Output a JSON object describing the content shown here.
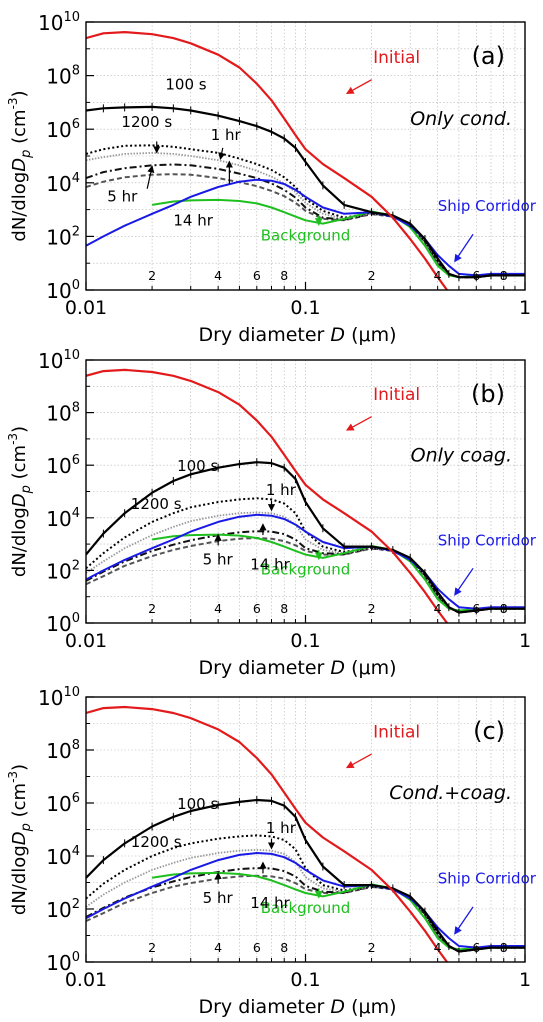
{
  "figure": {
    "panels": [
      {
        "label": "(a)",
        "mode_label": "Only cond."
      },
      {
        "label": "(b)",
        "mode_label": "Only coag."
      },
      {
        "label": "(c)",
        "mode_label": "Cond.+coag."
      }
    ],
    "xlabel": {
      "prefix": "Dry diameter ",
      "var": "D",
      "unit": " (μm)"
    },
    "ylabel": {
      "prefix": "dN/dlog",
      "var": "D",
      "sub": "p",
      "unit": " (cm",
      "exp": "-3",
      "close": ")"
    },
    "x_tick_major_labels": [
      "0.01",
      "0.1",
      "1"
    ],
    "x_tick_minor_labels": [
      "2",
      "4",
      "6",
      "8"
    ],
    "y_tick_labels": [
      {
        "base": "10",
        "exp": "0"
      },
      {
        "base": "10",
        "exp": "2"
      },
      {
        "base": "10",
        "exp": "4"
      },
      {
        "base": "10",
        "exp": "6"
      },
      {
        "base": "10",
        "exp": "8"
      },
      {
        "base": "10",
        "exp": "10"
      }
    ]
  },
  "colors": {
    "Initial": "#e31a1c",
    "Ship Corridor": "#1a1ae6",
    "Background": "#1fbf1f",
    "100 s": "#000000",
    "1200 s": "#000000",
    "1 hr": "#999999",
    "5 hr": "#111111",
    "14 hr": "#555555",
    "grid": "#b5b5b5"
  },
  "chart_data": [
    {
      "type": "line",
      "title": "(a) Only cond.",
      "x_scale": "log",
      "y_scale": "log",
      "xlim": [
        0.01,
        1
      ],
      "ylim": [
        1,
        10000000000.0
      ],
      "grid": true,
      "xlabel": "Dry diameter D (μm)",
      "ylabel": "dN/dlogDp (cm-3)",
      "x": [
        0.01,
        0.012,
        0.015,
        0.02,
        0.025,
        0.03,
        0.04,
        0.05,
        0.06,
        0.07,
        0.08,
        0.09,
        0.1,
        0.12,
        0.15,
        0.2,
        0.25,
        0.3,
        0.35,
        0.4,
        0.45,
        0.5,
        0.6,
        0.7,
        0.8,
        1.0
      ],
      "series": [
        {
          "name": "Initial",
          "values": [
            2500000000.0,
            3800000000.0,
            4200000000.0,
            3500000000.0,
            2500000000.0,
            1600000000.0,
            600000000.0,
            200000000.0,
            50000000.0,
            12000000.0,
            2500000.0,
            600000.0,
            180000.0,
            50000.0,
            15000.0,
            3000,
            500,
            80,
            15,
            3,
            0.8,
            null,
            null,
            null,
            null,
            null
          ]
        },
        {
          "name": "Ship Corridor",
          "values": [
            45,
            100,
            250,
            700,
            1500,
            3000,
            7000,
            11000.0,
            13000.0,
            12000.0,
            9000,
            5500,
            3000,
            1200,
            700,
            800,
            550,
            250,
            80,
            20,
            8,
            4,
            3.5,
            4,
            4,
            4
          ]
        },
        {
          "name": "Background",
          "values": [
            null,
            null,
            null,
            1500,
            2000,
            2200,
            2300,
            2100,
            1700,
            1200,
            800,
            550,
            400,
            300,
            450,
            850,
            600,
            220,
            45,
            8,
            3.5,
            3,
            3.3,
            3.5,
            3.5,
            3.5
          ]
        },
        {
          "name": "100 s",
          "values": [
            5000000.0,
            6000000.0,
            6500000.0,
            6800000.0,
            6000000.0,
            5000000.0,
            3200000.0,
            2000000.0,
            1300000.0,
            800000.0,
            450000.0,
            200000.0,
            60000.0,
            8000,
            1500,
            800,
            600,
            300,
            80,
            15,
            4,
            3,
            3,
            3.5,
            3.5,
            3.5
          ]
        },
        {
          "name": "1200 s",
          "values": [
            120000.0,
            180000.0,
            240000.0,
            250000.0,
            220000.0,
            180000.0,
            130000.0,
            80000.0,
            50000.0,
            30000.0,
            16000.0,
            7000,
            2500,
            900,
            500,
            750,
            600,
            280,
            70,
            12,
            4,
            3,
            3,
            3.5,
            3.5,
            3.5
          ]
        },
        {
          "name": "1 hr",
          "values": [
            70000.0,
            90000.0,
            120000.0,
            130000.0,
            120000.0,
            100000.0,
            70000.0,
            45000.0,
            28000.0,
            17000.0,
            9500,
            4500,
            1800,
            700,
            450,
            720,
            580,
            270,
            70,
            12,
            4,
            3,
            3,
            3.5,
            3.5,
            3.5
          ]
        },
        {
          "name": "5 hr",
          "values": [
            15000.0,
            25000.0,
            35000.0,
            45000.0,
            48000.0,
            45000.0,
            33000.0,
            22000.0,
            15000.0,
            9500,
            5500,
            2800,
            1200,
            500,
            420,
            700,
            560,
            260,
            65,
            11,
            4,
            3,
            3,
            3.5,
            3.5,
            3.5
          ]
        },
        {
          "name": "14 hr",
          "values": [
            7000,
            11000.0,
            16000.0,
            20000.0,
            21000.0,
            20000.0,
            15000.0,
            10500.0,
            7500,
            5000,
            3200,
            1800,
            900,
            450,
            400,
            680,
            550,
            250,
            60,
            10,
            3.8,
            3,
            3,
            3.5,
            3.5,
            3.5
          ]
        }
      ]
    },
    {
      "type": "line",
      "title": "(b) Only coag.",
      "x_scale": "log",
      "y_scale": "log",
      "xlim": [
        0.01,
        1
      ],
      "ylim": [
        1,
        10000000000.0
      ],
      "grid": true,
      "xlabel": "Dry diameter D (μm)",
      "ylabel": "dN/dlogDp (cm-3)",
      "x": [
        0.01,
        0.012,
        0.015,
        0.02,
        0.025,
        0.03,
        0.04,
        0.05,
        0.06,
        0.07,
        0.08,
        0.09,
        0.1,
        0.12,
        0.15,
        0.2,
        0.25,
        0.3,
        0.35,
        0.4,
        0.45,
        0.5,
        0.6,
        0.7,
        0.8,
        1.0
      ],
      "series": [
        {
          "name": "Initial",
          "values": [
            2500000000.0,
            3800000000.0,
            4200000000.0,
            3500000000.0,
            2500000000.0,
            1600000000.0,
            600000000.0,
            200000000.0,
            50000000.0,
            12000000.0,
            2500000.0,
            600000.0,
            180000.0,
            50000.0,
            15000.0,
            3000,
            500,
            80,
            15,
            3,
            0.8,
            null,
            null,
            null,
            null,
            null
          ]
        },
        {
          "name": "Ship Corridor",
          "values": [
            45,
            100,
            250,
            700,
            1500,
            3000,
            7000,
            11000.0,
            13000.0,
            12000.0,
            9000,
            5500,
            3000,
            1200,
            700,
            800,
            550,
            250,
            80,
            20,
            8,
            4,
            3.5,
            4,
            4,
            4
          ]
        },
        {
          "name": "Background",
          "values": [
            null,
            null,
            null,
            1500,
            2000,
            2200,
            2300,
            2100,
            1700,
            1200,
            800,
            550,
            400,
            300,
            450,
            850,
            600,
            220,
            45,
            8,
            3.5,
            3,
            3.3,
            3.5,
            3.5,
            3.5
          ]
        },
        {
          "name": "100 s",
          "values": [
            400,
            2500,
            15000.0,
            90000.0,
            250000.0,
            450000.0,
            800000.0,
            1100000.0,
            1300000.0,
            1200000.0,
            800000.0,
            300000.0,
            40000.0,
            4000,
            800,
            800,
            600,
            300,
            80,
            15,
            4,
            2.5,
            3,
            3.5,
            3.5,
            3.5
          ]
        },
        {
          "name": "1200 s",
          "values": [
            120,
            450,
            1800,
            7000,
            15000.0,
            25000.0,
            40000.0,
            50000.0,
            55000.0,
            50000.0,
            35000.0,
            15000.0,
            3000,
            800,
            500,
            750,
            600,
            280,
            70,
            12,
            4,
            2.5,
            3,
            3.5,
            3.5,
            3.5
          ]
        },
        {
          "name": "1 hr",
          "values": [
            80,
            220,
            700,
            2200,
            4500,
            7500,
            12000.0,
            15000.0,
            16000.0,
            15000.0,
            11000.0,
            5500,
            1500,
            600,
            450,
            720,
            580,
            270,
            70,
            12,
            4,
            2.5,
            3,
            3.5,
            3.5,
            3.5
          ]
        },
        {
          "name": "5 hr",
          "values": [
            40,
            90,
            220,
            550,
            950,
            1400,
            2200,
            2800,
            3100,
            3000,
            2400,
            1500,
            700,
            450,
            420,
            700,
            560,
            260,
            65,
            11,
            4,
            2.5,
            3,
            3.5,
            3.5,
            3.5
          ]
        },
        {
          "name": "14 hr",
          "values": [
            30,
            60,
            150,
            350,
            600,
            850,
            1300,
            1600,
            1700,
            1600,
            1300,
            900,
            550,
            400,
            400,
            680,
            550,
            250,
            60,
            10,
            3.8,
            2.5,
            3,
            3.5,
            3.5,
            3.5
          ]
        }
      ]
    },
    {
      "type": "line",
      "title": "(c) Cond.+coag.",
      "x_scale": "log",
      "y_scale": "log",
      "xlim": [
        0.01,
        1
      ],
      "ylim": [
        1,
        10000000000.0
      ],
      "grid": true,
      "xlabel": "Dry diameter D (μm)",
      "ylabel": "dN/dlogDp (cm-3)",
      "x": [
        0.01,
        0.012,
        0.015,
        0.02,
        0.025,
        0.03,
        0.04,
        0.05,
        0.06,
        0.07,
        0.08,
        0.09,
        0.1,
        0.12,
        0.15,
        0.2,
        0.25,
        0.3,
        0.35,
        0.4,
        0.45,
        0.5,
        0.6,
        0.7,
        0.8,
        1.0
      ],
      "series": [
        {
          "name": "Initial",
          "values": [
            2500000000.0,
            3800000000.0,
            4200000000.0,
            3500000000.0,
            2500000000.0,
            1600000000.0,
            600000000.0,
            200000000.0,
            50000000.0,
            12000000.0,
            2500000.0,
            600000.0,
            180000.0,
            50000.0,
            15000.0,
            3000,
            500,
            80,
            15,
            3,
            0.8,
            null,
            null,
            null,
            null,
            null
          ]
        },
        {
          "name": "Ship Corridor",
          "values": [
            45,
            100,
            250,
            700,
            1500,
            3000,
            7000,
            11000.0,
            13000.0,
            12000.0,
            9000,
            5500,
            3000,
            1200,
            700,
            800,
            550,
            250,
            80,
            20,
            8,
            4,
            3.5,
            4,
            4,
            4
          ]
        },
        {
          "name": "Background",
          "values": [
            null,
            null,
            null,
            1500,
            2000,
            2200,
            2300,
            2100,
            1700,
            1200,
            800,
            550,
            400,
            300,
            450,
            850,
            600,
            220,
            45,
            8,
            3.5,
            3,
            3.3,
            3.5,
            3.5,
            3.5
          ]
        },
        {
          "name": "100 s",
          "values": [
            1500,
            7000,
            30000.0,
            130000.0,
            300000.0,
            500000.0,
            850000.0,
            1100000.0,
            1300000.0,
            1200000.0,
            800000.0,
            300000.0,
            40000.0,
            4000,
            800,
            800,
            600,
            300,
            80,
            15,
            4,
            2.5,
            3,
            3.5,
            3.5,
            3.5
          ]
        },
        {
          "name": "1200 s",
          "values": [
            250,
            900,
            3000,
            10000.0,
            20000.0,
            30000.0,
            45000.0,
            55000.0,
            60000.0,
            55000.0,
            40000.0,
            18000.0,
            3500,
            800,
            500,
            750,
            600,
            280,
            70,
            12,
            4,
            2.5,
            3,
            3.5,
            3.5,
            3.5
          ]
        },
        {
          "name": "1 hr",
          "values": [
            120,
            350,
            1000,
            3000,
            5500,
            8500,
            13000.0,
            16000.0,
            17000.0,
            16000.0,
            12000.0,
            6000,
            1600,
            600,
            450,
            720,
            580,
            270,
            70,
            12,
            4,
            2.5,
            3,
            3.5,
            3.5,
            3.5
          ]
        },
        {
          "name": "5 hr",
          "values": [
            50,
            110,
            270,
            650,
            1100,
            1600,
            2500,
            3200,
            3500,
            3400,
            2700,
            1700,
            750,
            450,
            420,
            700,
            560,
            260,
            65,
            11,
            4,
            2.5,
            3,
            3.5,
            3.5,
            3.5
          ]
        },
        {
          "name": "14 hr",
          "values": [
            35,
            70,
            170,
            400,
            700,
            950,
            1400,
            1700,
            1800,
            1700,
            1400,
            950,
            560,
            400,
            400,
            680,
            550,
            250,
            60,
            10,
            3.8,
            2.5,
            3,
            3.5,
            3.5,
            3.5
          ]
        }
      ]
    }
  ]
}
